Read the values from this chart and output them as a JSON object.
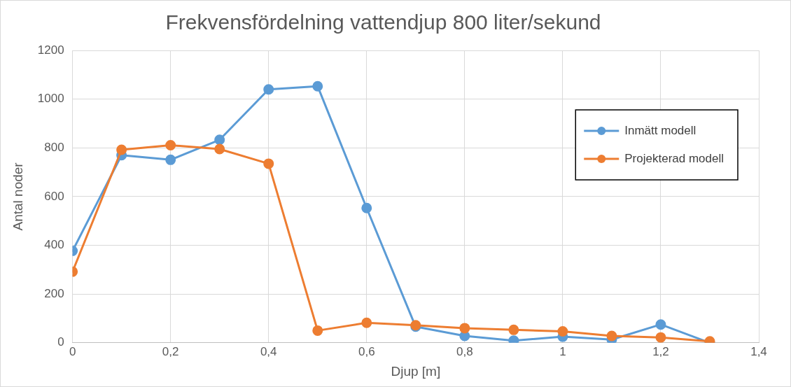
{
  "chart_data": {
    "type": "line",
    "title": "Frekvensfördelning vattendjup 800 liter/sekund",
    "xlabel": "Djup [m]",
    "ylabel": "Antal noder",
    "x": [
      0,
      0.1,
      0.2,
      0.3,
      0.4,
      0.5,
      0.6,
      0.7,
      0.8,
      0.9,
      1,
      1.1,
      1.2,
      1.3
    ],
    "series": [
      {
        "name": "Inmätt modell",
        "color": "#5b9bd5",
        "values": [
          377,
          770,
          751,
          833,
          1040,
          1053,
          553,
          66,
          28,
          9,
          25,
          13,
          75,
          0
        ]
      },
      {
        "name": "Projekterad modell",
        "color": "#ed7d31",
        "values": [
          292,
          792,
          811,
          795,
          735,
          50,
          82,
          72,
          60,
          53,
          47,
          28,
          22,
          6
        ]
      }
    ],
    "xlim": [
      0,
      1.4
    ],
    "xticks": [
      {
        "value": 0,
        "label": "0"
      },
      {
        "value": 0.2,
        "label": "0,2"
      },
      {
        "value": 0.4,
        "label": "0,4"
      },
      {
        "value": 0.6,
        "label": "0,6"
      },
      {
        "value": 0.8,
        "label": "0,8"
      },
      {
        "value": 1,
        "label": "1"
      },
      {
        "value": 1.2,
        "label": "1,2"
      },
      {
        "value": 1.4,
        "label": "1,4"
      }
    ],
    "ylim": [
      0,
      1200
    ],
    "yticks": [
      0,
      200,
      400,
      600,
      800,
      1000,
      1200
    ],
    "grid": true,
    "legend": "right",
    "marker": "circle",
    "line_style": "solid"
  }
}
